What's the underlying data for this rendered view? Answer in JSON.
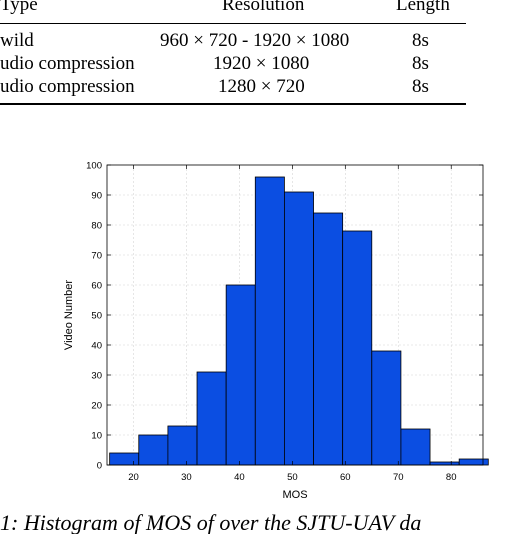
{
  "table": {
    "headers": [
      "Type",
      "Resolution",
      "Length"
    ],
    "rows": [
      [
        "wild",
        "960 × 720 - 1920 × 1080",
        "8s"
      ],
      [
        "udio compression",
        "1920 × 1080",
        "8s"
      ],
      [
        "udio compression",
        "1280 × 720",
        "8s"
      ]
    ]
  },
  "chart_data": {
    "type": "bar",
    "title": "",
    "xlabel": "MOS",
    "ylabel": "Video Number",
    "xlim": [
      15,
      86
    ],
    "ylim": [
      0,
      100
    ],
    "xticks": [
      20,
      30,
      40,
      50,
      60,
      70,
      80
    ],
    "yticks": [
      0,
      10,
      20,
      30,
      40,
      50,
      60,
      70,
      80,
      90,
      100
    ],
    "grid": true,
    "bar_color": "#0b4ee2",
    "bin_width": 5.5,
    "bin_starts": [
      15.5,
      21,
      26.5,
      32,
      37.5,
      43,
      48.5,
      54,
      59.5,
      65,
      70.5,
      76,
      81.5
    ],
    "values": [
      4,
      10,
      13,
      31,
      60,
      96,
      91,
      84,
      78,
      38,
      12,
      1,
      2
    ]
  },
  "caption": {
    "text": "1: Histogram of MOS of over the SJTU-UAV da"
  }
}
